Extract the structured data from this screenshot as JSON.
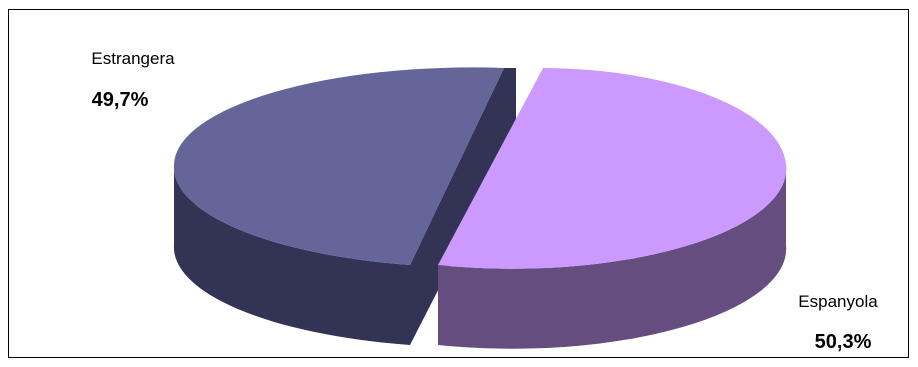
{
  "chart_data": {
    "type": "pie",
    "style": "3d-exploded",
    "slices": [
      {
        "name": "Estrangera",
        "value": 49.7,
        "label": "49,7%",
        "top_color": "#646699",
        "side_color": "#333355"
      },
      {
        "name": "Espanyola",
        "value": 50.3,
        "label": "50,3%",
        "top_color": "#cc99ff",
        "side_color": "#664d80"
      }
    ],
    "title": "",
    "legend": "none"
  }
}
